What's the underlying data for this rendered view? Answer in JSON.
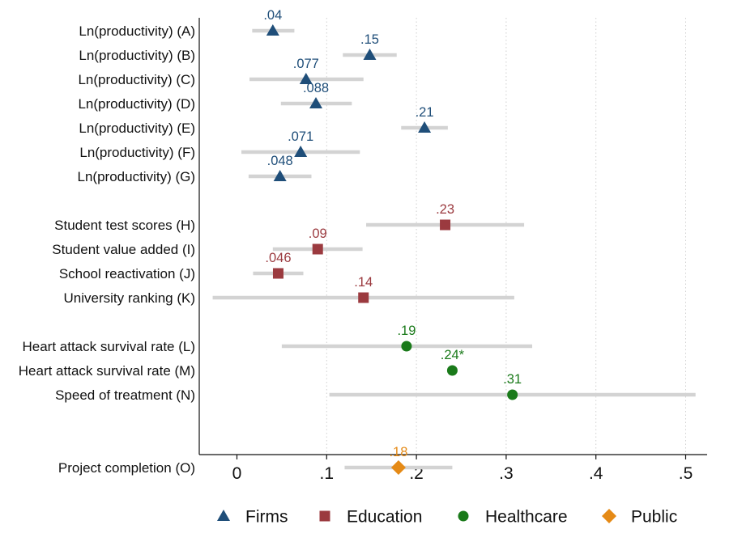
{
  "chart_data": {
    "type": "scatter",
    "subtype": "coefficient-plot-with-confidence-intervals",
    "orientation": "horizontal",
    "title": "",
    "xlabel": "",
    "ylabel": "",
    "xlim": [
      -0.03,
      0.53
    ],
    "x_ticks": [
      0,
      0.1,
      0.2,
      0.3,
      0.4,
      0.5
    ],
    "x_tick_labels": [
      "0",
      ".1",
      ".2",
      ".3",
      ".4",
      ".5"
    ],
    "grid": "vertical dotted",
    "legend_position": "bottom",
    "series": [
      {
        "name": "Firms",
        "color": "#1f4e79",
        "marker": "triangle",
        "points": [
          {
            "label": "Ln(productivity) (A)",
            "estimate": 0.04,
            "ci": [
              0.017,
              0.064
            ],
            "value_label": ".04"
          },
          {
            "label": "Ln(productivity) (B)",
            "estimate": 0.148,
            "ci": [
              0.118,
              0.178
            ],
            "value_label": ".15"
          },
          {
            "label": "Ln(productivity) (C)",
            "estimate": 0.077,
            "ci": [
              0.014,
              0.141
            ],
            "value_label": ".077"
          },
          {
            "label": "Ln(productivity) (D)",
            "estimate": 0.088,
            "ci": [
              0.049,
              0.128
            ],
            "value_label": ".088"
          },
          {
            "label": "Ln(productivity) (E)",
            "estimate": 0.209,
            "ci": [
              0.183,
              0.235
            ],
            "value_label": ".21"
          },
          {
            "label": "Ln(productivity) (F)",
            "estimate": 0.071,
            "ci": [
              0.005,
              0.137
            ],
            "value_label": ".071"
          },
          {
            "label": "Ln(productivity) (G)",
            "estimate": 0.048,
            "ci": [
              0.013,
              0.083
            ],
            "value_label": ".048"
          }
        ]
      },
      {
        "name": "Education",
        "color": "#9b3a3f",
        "marker": "square",
        "points": [
          {
            "label": "Student test scores (H)",
            "estimate": 0.232,
            "ci": [
              0.144,
              0.32
            ],
            "value_label": ".23"
          },
          {
            "label": "Student value added (I)",
            "estimate": 0.09,
            "ci": [
              0.04,
              0.14
            ],
            "value_label": ".09"
          },
          {
            "label": "School reactivation (J)",
            "estimate": 0.046,
            "ci": [
              0.018,
              0.074
            ],
            "value_label": ".046"
          },
          {
            "label": "University ranking (K)",
            "estimate": 0.141,
            "ci": [
              -0.027,
              0.309
            ],
            "value_label": ".14"
          }
        ]
      },
      {
        "name": "Healthcare",
        "color": "#1a7a1a",
        "marker": "circle",
        "points": [
          {
            "label": "Heart attack survival rate (L)",
            "estimate": 0.189,
            "ci": [
              0.05,
              0.329
            ],
            "value_label": ".19"
          },
          {
            "label": "Heart attack survival rate (M)",
            "estimate": 0.24,
            "ci": null,
            "value_label": ".24*"
          },
          {
            "label": "Speed of treatment (N)",
            "estimate": 0.307,
            "ci": [
              0.103,
              0.511
            ],
            "value_label": ".31"
          }
        ]
      },
      {
        "name": "Public",
        "color": "#e58a16",
        "marker": "diamond",
        "points": [
          {
            "label": "Project completion (O)",
            "estimate": 0.18,
            "ci": [
              0.12,
              0.24
            ],
            "value_label": ".18"
          }
        ]
      }
    ],
    "ci_color": "#d3d3d3",
    "axis_color": "#111111",
    "grid_color": "#cfcfcf"
  }
}
